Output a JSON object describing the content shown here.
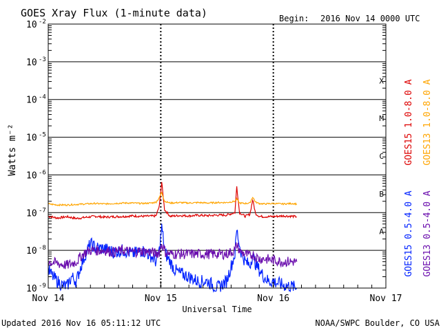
{
  "header": {
    "title": "GOES Xray Flux (1-minute data)",
    "begin_label": "Begin:",
    "begin_value": "2016 Nov 14 0000 UTC"
  },
  "footer": {
    "updated": "Updated 2016 Nov 16 05:11:12 UTC",
    "credit": "NOAA/SWPC Boulder, CO USA"
  },
  "chart_data": {
    "type": "line",
    "title": "GOES Xray Flux (1-minute data)",
    "xlabel": "Universal Time",
    "ylabel": "Watts m⁻²",
    "y_scale": "log",
    "ylim": [
      1e-09,
      0.01
    ],
    "xlim": [
      0,
      72
    ],
    "x_ticks": [
      {
        "value": 0,
        "label": "Nov 14"
      },
      {
        "value": 24,
        "label": "Nov 15"
      },
      {
        "value": 48,
        "label": "Nov 16"
      },
      {
        "value": 72,
        "label": "Nov 17"
      }
    ],
    "y_ticks": [
      {
        "exp": -9,
        "label": "10",
        "sup": "-9"
      },
      {
        "exp": -8,
        "label": "10",
        "sup": "-8"
      },
      {
        "exp": -7,
        "label": "10",
        "sup": "-7"
      },
      {
        "exp": -6,
        "label": "10",
        "sup": "-6"
      },
      {
        "exp": -5,
        "label": "10",
        "sup": "-5"
      },
      {
        "exp": -4,
        "label": "10",
        "sup": "-4"
      },
      {
        "exp": -3,
        "label": "10",
        "sup": "-3"
      },
      {
        "exp": -2,
        "label": "10",
        "sup": "-2"
      }
    ],
    "flare_classes": [
      {
        "label": "A",
        "exp": -8
      },
      {
        "label": "B",
        "exp": -7
      },
      {
        "label": "C",
        "exp": -6
      },
      {
        "label": "M",
        "exp": -5
      },
      {
        "label": "X",
        "exp": -4
      }
    ],
    "grid": true,
    "legend": [
      {
        "name": "GOES15 1.0-8.0 A",
        "color": "#dd0000"
      },
      {
        "name": "GOES13 1.0-8.0 A",
        "color": "#ffa500"
      },
      {
        "name": "GOES15 0.5-4.0 A",
        "color": "#0022ff"
      },
      {
        "name": "GOES13 0.5-4.0 A",
        "color": "#6a0dad"
      }
    ],
    "series": [
      {
        "name": "GOES15 1.0-8.0 A",
        "color": "#dd0000",
        "x": [
          0,
          2,
          4,
          6,
          8,
          10,
          12,
          14,
          16,
          18,
          20,
          22,
          23,
          23.7,
          24.2,
          24.8,
          26,
          28,
          30,
          32,
          34,
          36,
          38,
          39.8,
          40.2,
          40.8,
          42,
          43,
          43.6,
          44.2,
          45,
          46,
          48,
          50,
          52,
          53
        ],
        "y": [
          8e-08,
          7.2e-08,
          7.8e-08,
          7e-08,
          7.5e-08,
          8e-08,
          7.6e-08,
          7.8e-08,
          7.9e-08,
          8.2e-08,
          8e-08,
          8.1e-08,
          8.2e-08,
          1.5e-07,
          6.5e-07,
          1.2e-07,
          8e-08,
          8.4e-08,
          8.2e-08,
          8.5e-08,
          8.3e-08,
          8.6e-08,
          8.6e-08,
          1e-07,
          5e-07,
          1e-07,
          8e-08,
          9e-08,
          2.2e-07,
          9.5e-08,
          8e-08,
          7.8e-08,
          7.9e-08,
          8.2e-08,
          8e-08,
          7.8e-08
        ]
      },
      {
        "name": "GOES13 1.0-8.0 A",
        "color": "#ffa500",
        "x": [
          0,
          2,
          4,
          6,
          8,
          10,
          12,
          14,
          16,
          18,
          20,
          22,
          23,
          23.7,
          24.2,
          24.8,
          26,
          28,
          30,
          32,
          34,
          36,
          38,
          39.8,
          40.2,
          40.8,
          42,
          43,
          43.6,
          44.2,
          45,
          46,
          48,
          50,
          52,
          53
        ],
        "y": [
          1.7e-07,
          1.6e-07,
          1.6e-07,
          1.65e-07,
          1.7e-07,
          1.75e-07,
          1.7e-07,
          1.75e-07,
          1.8e-07,
          1.8e-07,
          1.75e-07,
          1.8e-07,
          1.9e-07,
          2.5e-07,
          3.5e-07,
          2e-07,
          1.8e-07,
          1.85e-07,
          1.8e-07,
          1.85e-07,
          1.8e-07,
          1.85e-07,
          1.85e-07,
          2e-07,
          2.3e-07,
          1.8e-07,
          1.75e-07,
          1.8e-07,
          2.6e-07,
          1.9e-07,
          1.75e-07,
          1.7e-07,
          1.75e-07,
          1.7e-07,
          1.75e-07,
          1.7e-07
        ]
      },
      {
        "name": "GOES15 0.5-4.0 A",
        "color": "#0022ff",
        "x": [
          0,
          1,
          2,
          3,
          4,
          5,
          6,
          7,
          8,
          9,
          10,
          12,
          14,
          16,
          18,
          20,
          22,
          23,
          23.7,
          24.2,
          25,
          26,
          27,
          28,
          30,
          32,
          34,
          36,
          38,
          39.8,
          40.2,
          41,
          42,
          43,
          43.6,
          44,
          45,
          46,
          47,
          48,
          50,
          52,
          53
        ],
        "y": [
          3e-09,
          2e-09,
          1.5e-09,
          1.2e-09,
          1.1e-09,
          2e-09,
          1.5e-09,
          4e-09,
          8e-09,
          1.5e-08,
          1.2e-08,
          1.1e-08,
          9e-09,
          1e-08,
          8e-09,
          1e-08,
          7e-09,
          5e-09,
          1e-08,
          4e-08,
          8e-09,
          5e-09,
          3e-09,
          2.5e-09,
          2e-09,
          1.5e-09,
          1.5e-09,
          1e-09,
          1.5e-09,
          8e-09,
          3.5e-08,
          1e-08,
          5e-09,
          4e-09,
          8e-09,
          5e-09,
          3e-09,
          2e-09,
          1.5e-09,
          1.5e-09,
          1.2e-09,
          1.1e-09,
          1e-09
        ]
      },
      {
        "name": "GOES13 0.5-4.0 A",
        "color": "#6a0dad",
        "x": [
          0,
          2,
          4,
          6,
          7,
          8,
          9,
          10,
          12,
          14,
          16,
          18,
          20,
          22,
          23,
          23.7,
          24.2,
          25,
          26,
          28,
          30,
          32,
          34,
          36,
          38,
          39.8,
          40.2,
          41,
          42,
          43,
          43.6,
          44,
          45,
          46,
          48,
          50,
          52,
          53
        ],
        "y": [
          5e-09,
          4.5e-09,
          4e-09,
          5e-09,
          7e-09,
          9e-09,
          1e-08,
          1e-08,
          1e-08,
          9e-09,
          1e-08,
          9e-09,
          9.5e-09,
          9e-09,
          8e-09,
          9e-09,
          1.5e-08,
          9e-09,
          8e-09,
          8e-09,
          8e-09,
          8e-09,
          8e-09,
          8e-09,
          8e-09,
          1e-08,
          1.4e-08,
          9e-09,
          8e-09,
          7e-09,
          8e-09,
          7e-09,
          6e-09,
          6e-09,
          5.5e-09,
          5e-09,
          5e-09,
          5e-09
        ]
      }
    ]
  }
}
